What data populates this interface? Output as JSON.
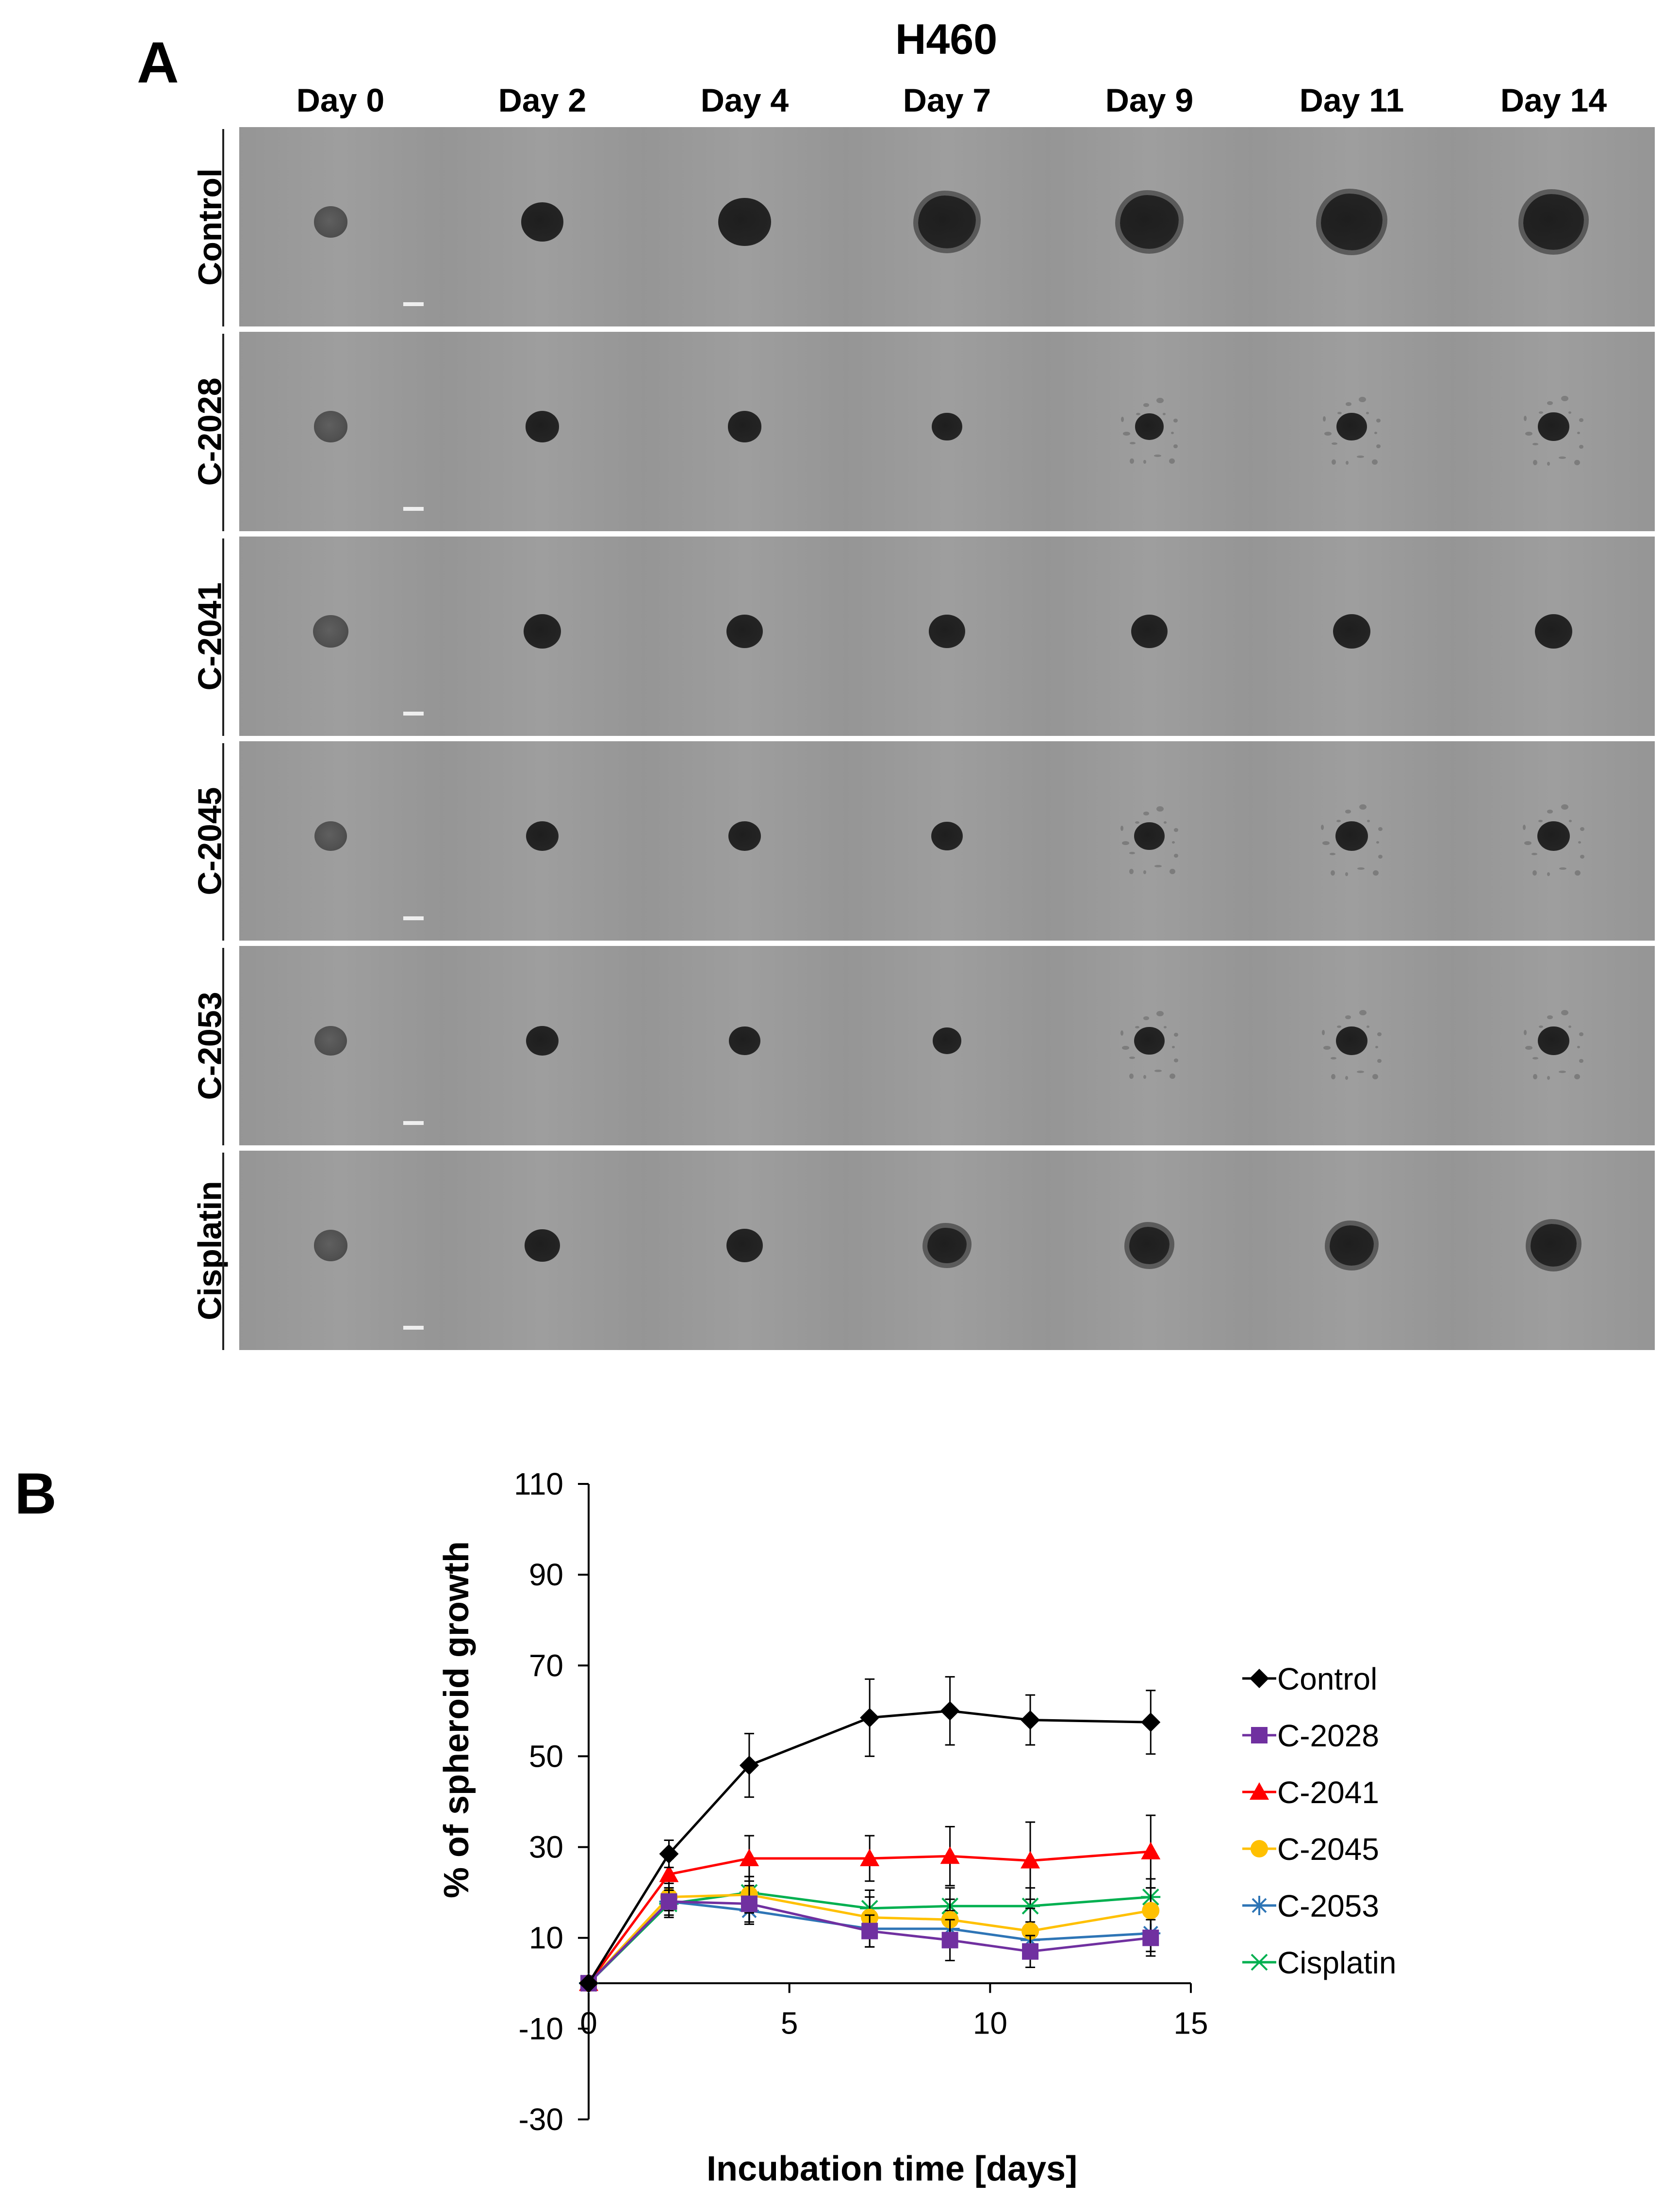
{
  "panel_a": {
    "letter": "A",
    "cell_line": "H460",
    "days": [
      "Day 0",
      "Day 2",
      "Day 4",
      "Day 7",
      "Day 9",
      "Day 11",
      "Day 14"
    ],
    "treatments": [
      "Control",
      "C-2028",
      "C-2041",
      "C-2045",
      "C-2053",
      "Cisplatin"
    ]
  },
  "panel_b": {
    "letter": "B"
  },
  "chart_data": {
    "type": "line",
    "title": "",
    "xlabel": "Incubation time [days]",
    "ylabel": "% of spheroid growth",
    "xlim": [
      0,
      15
    ],
    "ylim": [
      -30,
      110
    ],
    "xticks": [
      0,
      5,
      10,
      15
    ],
    "yticks": [
      -30,
      -10,
      10,
      30,
      50,
      70,
      90,
      110
    ],
    "grid": false,
    "legend_position": "right",
    "x": [
      0,
      2,
      4,
      7,
      9,
      11,
      14
    ],
    "series": [
      {
        "name": "Control",
        "color": "#000000",
        "marker": "diamond",
        "values": [
          0,
          28.5,
          48,
          58.5,
          60,
          58,
          57.5
        ],
        "errors": [
          0,
          3,
          7,
          8.5,
          7.5,
          5.5,
          7
        ]
      },
      {
        "name": "C-2028",
        "color": "#7030a0",
        "marker": "square",
        "values": [
          0,
          18,
          17.5,
          11.5,
          9.5,
          7,
          10
        ],
        "errors": [
          0,
          3,
          4,
          3.5,
          4.5,
          3.5,
          4
        ]
      },
      {
        "name": "C-2041",
        "color": "#ff0000",
        "marker": "triangle",
        "values": [
          0,
          24,
          27.5,
          27.5,
          28,
          27,
          29
        ],
        "errors": [
          0,
          3.5,
          5,
          5,
          6.5,
          8.5,
          8
        ]
      },
      {
        "name": "C-2045",
        "color": "#ffc000",
        "marker": "circle",
        "values": [
          0,
          19,
          19.5,
          14.5,
          14,
          11.5,
          16
        ],
        "errors": [
          0,
          3,
          4,
          4.5,
          4.5,
          5,
          5
        ]
      },
      {
        "name": "C-2053",
        "color": "#2e75b6",
        "marker": "star",
        "values": [
          0,
          18,
          16,
          12,
          12,
          9.5,
          11
        ],
        "errors": [
          0,
          3,
          3,
          4,
          4,
          4,
          4
        ]
      },
      {
        "name": "Cisplatin",
        "color": "#00b050",
        "marker": "x",
        "values": [
          0,
          17.5,
          20,
          16.5,
          17,
          17,
          19
        ],
        "errors": [
          0,
          3,
          3.5,
          4,
          4,
          4,
          4
        ]
      }
    ]
  }
}
